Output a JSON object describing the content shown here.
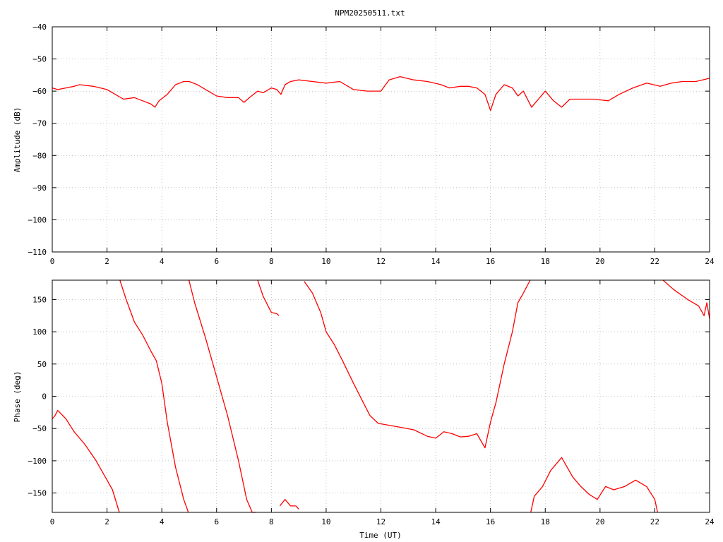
{
  "chart_data": [
    {
      "type": "line",
      "title": "NPM20250511.txt",
      "xlabel": "",
      "ylabel": "Amplitude (dB)",
      "xlim": [
        0,
        24
      ],
      "ylim": [
        -110,
        -40
      ],
      "x_ticks": [
        0,
        2,
        4,
        6,
        8,
        10,
        12,
        14,
        16,
        18,
        20,
        22,
        24
      ],
      "y_ticks": [
        -40,
        -50,
        -60,
        -70,
        -80,
        -90,
        -100,
        -110
      ],
      "grid": true,
      "line_color": "#ff0000",
      "series": [
        {
          "x": [
            0,
            0.2,
            0.5,
            0.8,
            1.0,
            1.5,
            2.0,
            2.3,
            2.6,
            3.0,
            3.3,
            3.6,
            3.75,
            3.9,
            4.2,
            4.5,
            4.8,
            5.0,
            5.3,
            5.6,
            6.0,
            6.4,
            6.8,
            7.0,
            7.2,
            7.5,
            7.7,
            8.0,
            8.2,
            8.35,
            8.5,
            8.7,
            9.0,
            9.5,
            10.0,
            10.5,
            11.0,
            11.5,
            12.0,
            12.3,
            12.7,
            13.2,
            13.7,
            14.2,
            14.5,
            14.9,
            15.2,
            15.5,
            15.8,
            16.0,
            16.2,
            16.5,
            16.8,
            17.0,
            17.2,
            17.5,
            17.7,
            18.0,
            18.3,
            18.6,
            18.9,
            19.3,
            19.8,
            20.3,
            20.7,
            21.2,
            21.7,
            22.2,
            22.6,
            23.0,
            23.5,
            24.0
          ],
          "y": [
            -59,
            -59.5,
            -59,
            -58.5,
            -58,
            -58.5,
            -59.5,
            -61,
            -62.5,
            -62,
            -63,
            -64,
            -65,
            -63,
            -61,
            -58,
            -57,
            -57,
            -58,
            -59.5,
            -61.5,
            -62,
            -62,
            -63.5,
            -62,
            -60,
            -60.5,
            -59,
            -59.5,
            -61,
            -58,
            -57,
            -56.5,
            -57,
            -57.5,
            -57,
            -59.5,
            -60,
            -60,
            -56.5,
            -55.5,
            -56.5,
            -57,
            -58,
            -59,
            -58.5,
            -58.5,
            -59,
            -61,
            -66,
            -61,
            -58,
            -59,
            -61.5,
            -60,
            -65,
            -63,
            -60,
            -63,
            -65,
            -62.5,
            -62.5,
            -62.5,
            -63,
            -61,
            -59,
            -57.5,
            -58.5,
            -57.5,
            -57,
            -57,
            -56
          ]
        }
      ]
    },
    {
      "type": "line",
      "title": "",
      "xlabel": "Time (UT)",
      "ylabel": "Phase (deg)",
      "xlim": [
        0,
        24
      ],
      "ylim": [
        -180,
        180
      ],
      "x_ticks": [
        0,
        2,
        4,
        6,
        8,
        10,
        12,
        14,
        16,
        18,
        20,
        22,
        24
      ],
      "y_ticks": [
        150,
        100,
        50,
        0,
        -50,
        -100,
        -150
      ],
      "grid": true,
      "line_color": "#ff0000",
      "series": [
        {
          "x": [
            0,
            0.1,
            0.2,
            0.5,
            0.8,
            1.2,
            1.6,
            2.0,
            2.2,
            2.45,
            2.46,
            2.47,
            2.7,
            3.0,
            3.3,
            3.6,
            3.8,
            4.0,
            4.2,
            4.5,
            4.8,
            4.97,
            4.98,
            4.99,
            5.2,
            5.6,
            6.0,
            6.4,
            6.8,
            7.1,
            7.3,
            7.45,
            7.46,
            7.5,
            7.7,
            8.0,
            8.2,
            8.28,
            8.29,
            8.31,
            8.5,
            8.7,
            8.9,
            9.0,
            9.01,
            9.1,
            9.11,
            9.2,
            9.5,
            9.8,
            10.0,
            10.3,
            10.6,
            11.0,
            11.3,
            11.6,
            11.9,
            12.3,
            12.7,
            13.2,
            13.7,
            14.0,
            14.3,
            14.6,
            14.9,
            15.2,
            15.5,
            15.8,
            16.0,
            16.2,
            16.5,
            16.8,
            17.0,
            17.2,
            17.45,
            17.46,
            17.47,
            17.6,
            17.9,
            18.2,
            18.6,
            19.0,
            19.3,
            19.6,
            19.9,
            20.2,
            20.5,
            20.9,
            21.3,
            21.7,
            22.0,
            22.1,
            22.11,
            22.3,
            22.7,
            23.2,
            23.6,
            23.8,
            23.9,
            24.0
          ],
          "y": [
            -35,
            -30,
            -22,
            -35,
            -55,
            -75,
            -100,
            -130,
            -145,
            -180,
            null,
            180,
            150,
            115,
            95,
            70,
            55,
            20,
            -40,
            -110,
            -160,
            -180,
            null,
            180,
            145,
            90,
            30,
            -30,
            -100,
            -160,
            -180,
            -180,
            null,
            180,
            155,
            130,
            128,
            125,
            null,
            -170,
            -160,
            -170,
            -170,
            -175,
            null,
            -175,
            null,
            178,
            160,
            130,
            100,
            80,
            55,
            20,
            -5,
            -30,
            -42,
            -45,
            -48,
            -52,
            -62,
            -65,
            -55,
            -58,
            -63,
            -62,
            -58,
            -80,
            -40,
            -10,
            50,
            100,
            145,
            160,
            180,
            null,
            -180,
            -155,
            -140,
            -115,
            -95,
            -125,
            -140,
            -152,
            -160,
            -140,
            -145,
            -140,
            -130,
            -140,
            -160,
            -180,
            null,
            180,
            165,
            150,
            140,
            125,
            145,
            120
          ]
        }
      ]
    }
  ]
}
